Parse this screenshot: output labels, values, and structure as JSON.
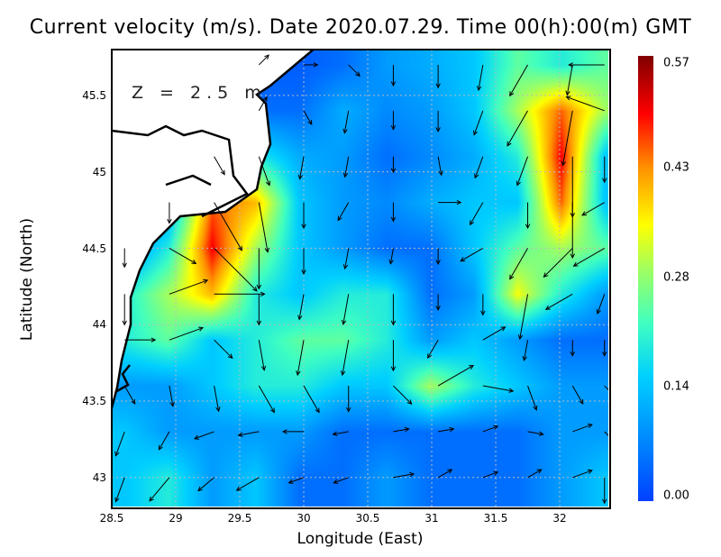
{
  "chart_data": {
    "type": "heatmap",
    "title": "Current velocity (m/s). Date 2020.07.29. Time 00(h):00(m) GMT",
    "xlabel": "Longitude (East)",
    "ylabel": "Latitude (North)",
    "annotation": "Z = 2.5 m",
    "xlim": [
      28.5,
      32.38
    ],
    "ylim": [
      42.81,
      45.8
    ],
    "xticks": [
      "28.5",
      "29",
      "29.5",
      "30",
      "30.5",
      "31",
      "31.5",
      "32"
    ],
    "xtick_values": [
      28.5,
      29,
      29.5,
      30,
      30.5,
      31,
      31.5,
      32
    ],
    "yticks": [
      "43",
      "43.5",
      "44",
      "44.5",
      "45",
      "45.5"
    ],
    "ytick_values": [
      43,
      43.5,
      44,
      44.5,
      45,
      45.5
    ],
    "grid": true,
    "colorbar": {
      "ticks": [
        "0.57",
        "0.43",
        "0.28",
        "0.14",
        "0.00"
      ],
      "tick_values": [
        0.57,
        0.43,
        0.28,
        0.14,
        0.0
      ],
      "range": [
        0,
        0.57
      ],
      "colormap": "jet"
    },
    "grid_lon": [
      28.6,
      28.95,
      29.3,
      29.65,
      30.0,
      30.35,
      30.7,
      31.05,
      31.4,
      31.75,
      32.1,
      32.35
    ],
    "grid_lat": [
      45.7,
      45.4,
      45.1,
      44.8,
      44.5,
      44.2,
      43.9,
      43.6,
      43.3,
      43.0
    ],
    "speed": [
      [
        null,
        null,
        null,
        0.03,
        0.03,
        0.05,
        0.1,
        0.12,
        0.15,
        0.25,
        0.2,
        0.25
      ],
      [
        null,
        null,
        null,
        0.05,
        0.05,
        0.12,
        0.08,
        0.1,
        0.15,
        0.3,
        0.45,
        0.3
      ],
      [
        null,
        null,
        0.1,
        0.2,
        0.12,
        0.1,
        0.05,
        0.08,
        0.12,
        0.2,
        0.5,
        0.15
      ],
      [
        null,
        0.1,
        0.45,
        0.4,
        0.15,
        0.1,
        0.08,
        0.12,
        0.15,
        0.15,
        0.45,
        0.15
      ],
      [
        0.08,
        0.2,
        0.5,
        0.3,
        0.15,
        0.1,
        0.05,
        0.05,
        0.15,
        0.25,
        0.3,
        0.25
      ],
      [
        0.2,
        0.3,
        0.4,
        0.2,
        0.15,
        0.2,
        0.2,
        0.05,
        0.1,
        0.35,
        0.2,
        0.1
      ],
      [
        0.2,
        0.25,
        0.15,
        0.2,
        0.25,
        0.25,
        0.2,
        0.1,
        0.15,
        0.1,
        0.05,
        0.05
      ],
      [
        0.1,
        0.1,
        0.15,
        0.2,
        0.2,
        0.15,
        0.15,
        0.3,
        0.2,
        0.15,
        0.1,
        0.1
      ],
      [
        0.15,
        0.1,
        0.1,
        0.1,
        0.1,
        0.05,
        0.05,
        0.05,
        0.05,
        0.05,
        0.1,
        0.1
      ],
      [
        0.15,
        0.2,
        0.1,
        0.15,
        0.05,
        0.05,
        0.1,
        0.05,
        0.05,
        0.05,
        0.1,
        0.15
      ]
    ],
    "direction_deg": [
      [
        null,
        null,
        null,
        45,
        0,
        -45,
        -90,
        -90,
        -100,
        -120,
        -100,
        180
      ],
      [
        null,
        null,
        null,
        60,
        -60,
        -100,
        -90,
        -90,
        -110,
        -120,
        -100,
        160
      ],
      [
        null,
        null,
        -60,
        -70,
        -100,
        -100,
        -90,
        -80,
        -110,
        -110,
        -90,
        -90
      ],
      [
        null,
        -90,
        -60,
        -80,
        -90,
        -120,
        -90,
        0,
        -120,
        -90,
        -90,
        -150
      ],
      [
        -90,
        -30,
        -45,
        -90,
        -90,
        -100,
        -100,
        -90,
        -150,
        -120,
        -135,
        -150
      ],
      [
        -90,
        20,
        0,
        -90,
        -100,
        -100,
        -90,
        -90,
        -90,
        -100,
        -150,
        -110
      ],
      [
        0,
        20,
        -45,
        -80,
        -100,
        -100,
        -90,
        -120,
        30,
        -100,
        -90,
        -90
      ],
      [
        -60,
        -80,
        -80,
        -60,
        -60,
        -90,
        -45,
        30,
        -10,
        -70,
        -60,
        -45
      ],
      [
        -110,
        -120,
        -160,
        -170,
        180,
        -170,
        10,
        10,
        20,
        -10,
        20,
        -45
      ],
      [
        -110,
        -130,
        -140,
        -150,
        -160,
        -160,
        10,
        30,
        20,
        30,
        20,
        -90
      ]
    ]
  }
}
